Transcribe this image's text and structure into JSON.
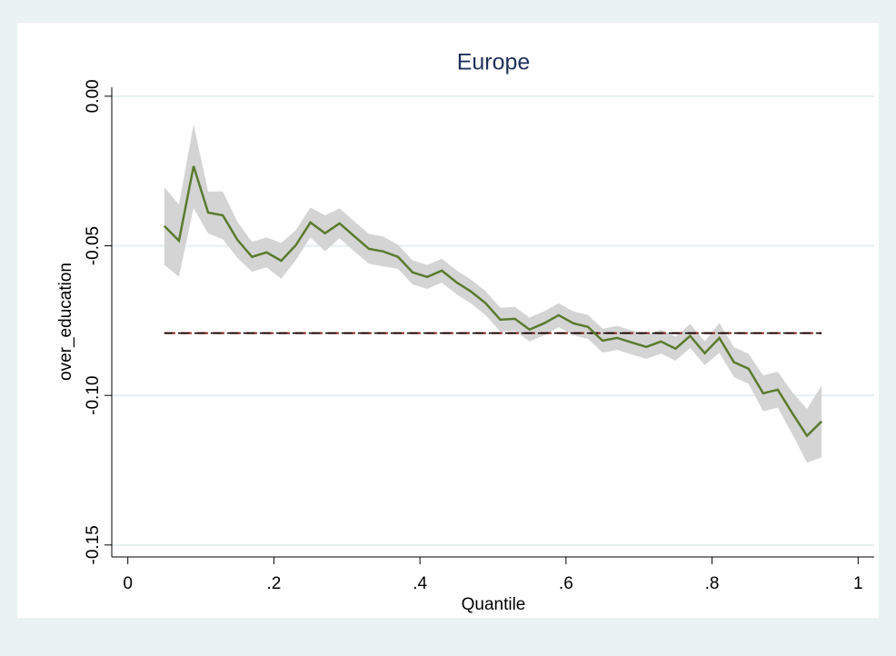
{
  "chart_data": {
    "type": "line",
    "title": "Europe",
    "x_label": "Quantile",
    "y_label": "over_education",
    "x": [
      0.05,
      0.07,
      0.09,
      0.11,
      0.13,
      0.15,
      0.17,
      0.19,
      0.21,
      0.23,
      0.25,
      0.27,
      0.29,
      0.31,
      0.33,
      0.35,
      0.37,
      0.39,
      0.41,
      0.43,
      0.45,
      0.47,
      0.49,
      0.51,
      0.53,
      0.55,
      0.57,
      0.59,
      0.61,
      0.63,
      0.65,
      0.67,
      0.69,
      0.71,
      0.73,
      0.75,
      0.77,
      0.79,
      0.81,
      0.83,
      0.85,
      0.87,
      0.89,
      0.91,
      0.93,
      0.95
    ],
    "series": [
      {
        "color": "#5a7b2e",
        "values": [
          -0.0434,
          -0.0483,
          -0.0234,
          -0.0389,
          -0.0398,
          -0.048,
          -0.0537,
          -0.0522,
          -0.055,
          -0.0498,
          -0.0422,
          -0.0458,
          -0.0425,
          -0.0468,
          -0.051,
          -0.0519,
          -0.0537,
          -0.0589,
          -0.0604,
          -0.0583,
          -0.0622,
          -0.0653,
          -0.0692,
          -0.0747,
          -0.0744,
          -0.078,
          -0.0759,
          -0.0732,
          -0.0759,
          -0.0771,
          -0.0817,
          -0.0808,
          -0.0823,
          -0.0838,
          -0.082,
          -0.0844,
          -0.0801,
          -0.0859,
          -0.0808,
          -0.0889,
          -0.0911,
          -0.0993,
          -0.0981,
          -0.106,
          -0.1135,
          -0.1087
        ]
      }
    ],
    "ci_color": "#d4d4d4",
    "ci_upper": [
      -0.0304,
      -0.0363,
      -0.0094,
      -0.0319,
      -0.0318,
      -0.042,
      -0.0487,
      -0.0472,
      -0.049,
      -0.0448,
      -0.0372,
      -0.0398,
      -0.0375,
      -0.0418,
      -0.046,
      -0.0469,
      -0.0497,
      -0.0549,
      -0.0564,
      -0.0543,
      -0.0582,
      -0.0613,
      -0.0652,
      -0.0707,
      -0.0704,
      -0.074,
      -0.0719,
      -0.0692,
      -0.0719,
      -0.0731,
      -0.0777,
      -0.0768,
      -0.0783,
      -0.0798,
      -0.078,
      -0.0804,
      -0.0761,
      -0.0819,
      -0.0758,
      -0.0839,
      -0.0861,
      -0.0933,
      -0.0921,
      -0.099,
      -0.1045,
      -0.0967
    ],
    "ci_lower": [
      -0.0564,
      -0.0603,
      -0.0374,
      -0.0459,
      -0.0478,
      -0.054,
      -0.0587,
      -0.0572,
      -0.061,
      -0.0548,
      -0.0472,
      -0.0518,
      -0.0475,
      -0.0518,
      -0.056,
      -0.0569,
      -0.0577,
      -0.0629,
      -0.0644,
      -0.0623,
      -0.0662,
      -0.0693,
      -0.0732,
      -0.0787,
      -0.0784,
      -0.082,
      -0.0799,
      -0.0772,
      -0.0799,
      -0.0811,
      -0.0857,
      -0.0848,
      -0.0863,
      -0.0878,
      -0.086,
      -0.0884,
      -0.0841,
      -0.0899,
      -0.0858,
      -0.0939,
      -0.0961,
      -0.1053,
      -0.1041,
      -0.113,
      -0.1225,
      -0.1207
    ],
    "reference_line": -0.0792,
    "xlim": [
      -0.022,
      1.022
    ],
    "ylim": [
      -0.154,
      0.003
    ],
    "xticks": [
      0,
      {
        "value": 0.2,
        "label": ".2"
      },
      {
        "value": 0.4,
        "label": ".4"
      },
      {
        "value": 0.6,
        "label": ".6"
      },
      {
        "value": 0.8,
        "label": ".8"
      },
      1
    ],
    "yticks": [
      {
        "value": 0,
        "label": "0.00"
      },
      {
        "value": -0.05,
        "label": "-0.05"
      },
      {
        "value": -0.1,
        "label": "-0.10"
      },
      {
        "value": -0.15,
        "label": "-0.15"
      }
    ],
    "grid": true
  }
}
